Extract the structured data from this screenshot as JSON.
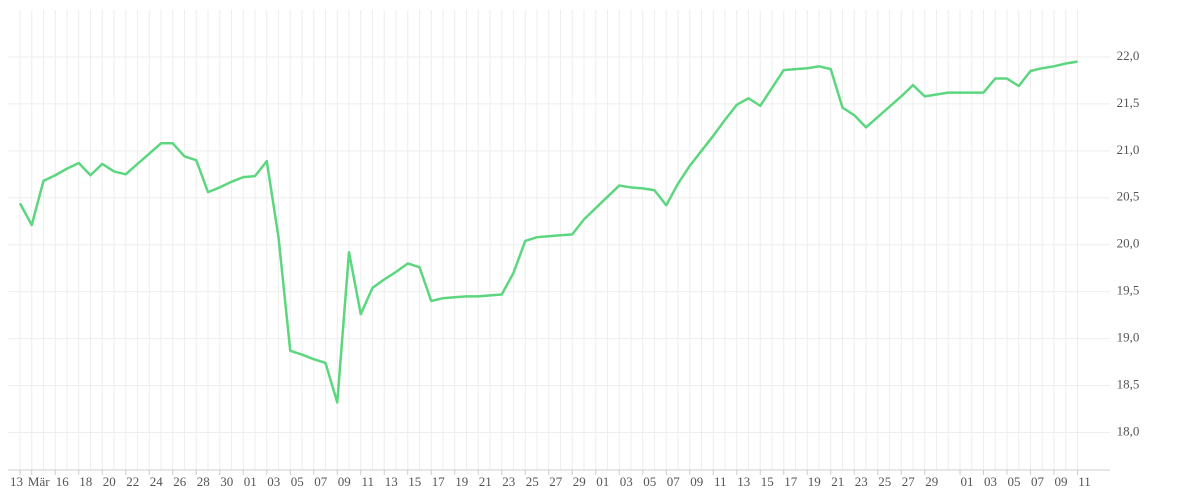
{
  "chart_data": {
    "type": "line",
    "categories": [
      "13",
      "Mär",
      null,
      "16",
      null,
      "18",
      null,
      "20",
      null,
      "22",
      null,
      "24",
      null,
      "26",
      null,
      "28",
      null,
      "30",
      null,
      "01",
      null,
      "03",
      null,
      "05",
      null,
      "07",
      null,
      "09",
      null,
      "11",
      null,
      "13",
      null,
      "15",
      null,
      "17",
      null,
      "19",
      null,
      "21",
      null,
      "23",
      null,
      "25",
      null,
      "27",
      null,
      "29",
      null,
      "01",
      null,
      "03",
      null,
      "05",
      null,
      "07",
      null,
      "09",
      null,
      "11",
      null,
      "13",
      null,
      "15",
      null,
      "17",
      null,
      "19",
      null,
      "21",
      null,
      "23",
      null,
      "25",
      null,
      "27",
      null,
      "29",
      null,
      null,
      "01",
      null,
      "03",
      null,
      "05",
      null,
      "07",
      null,
      "09",
      null,
      "11"
    ],
    "series": [
      {
        "color": "#5cd67f",
        "values": [
          20.44,
          20.21,
          20.68,
          20.74,
          20.81,
          20.87,
          20.74,
          20.86,
          20.78,
          20.75,
          20.86,
          20.97,
          21.08,
          21.08,
          20.94,
          20.9,
          20.56,
          20.61,
          20.67,
          20.72,
          20.73,
          20.89,
          20.08,
          18.87,
          18.83,
          18.78,
          18.74,
          18.32,
          19.92,
          19.26,
          19.54,
          19.63,
          19.71,
          19.8,
          19.76,
          19.4,
          19.43,
          19.44,
          19.45,
          19.45,
          19.46,
          19.47,
          19.7,
          20.04,
          20.08,
          20.09,
          20.1,
          20.11,
          20.27,
          20.39,
          20.51,
          20.63,
          20.61,
          20.6,
          20.58,
          20.42,
          20.65,
          20.84,
          21.0,
          21.16,
          21.33,
          21.49,
          21.56,
          21.48,
          21.67,
          21.86,
          21.87,
          21.88,
          21.9,
          21.87,
          21.46,
          21.38,
          21.25,
          21.36,
          21.47,
          21.58,
          21.7,
          21.58,
          21.6,
          21.62,
          21.62,
          21.62,
          21.62,
          21.77,
          21.77,
          21.69,
          21.85,
          21.88,
          21.9,
          21.93,
          21.95
        ]
      }
    ],
    "ylim": [
      17.6,
      22.5
    ],
    "yticks": [
      {
        "value": 18.0,
        "label": "18,0"
      },
      {
        "value": 18.5,
        "label": "18,5"
      },
      {
        "value": 19.0,
        "label": "19,0"
      },
      {
        "value": 19.5,
        "label": "19,5"
      },
      {
        "value": 20.0,
        "label": "20,0"
      },
      {
        "value": 20.5,
        "label": "20,5"
      },
      {
        "value": 21.0,
        "label": "21,0"
      },
      {
        "value": 21.5,
        "label": "21,5"
      },
      {
        "value": 22.0,
        "label": "22,0"
      }
    ],
    "grid": true
  }
}
